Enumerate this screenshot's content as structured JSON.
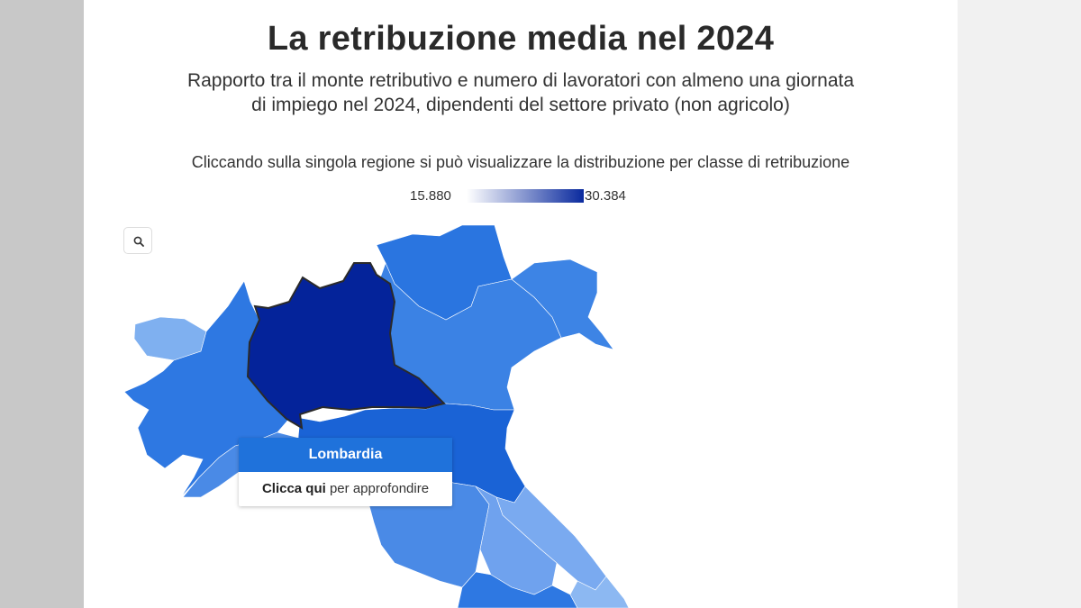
{
  "header": {
    "title": "La retribuzione media nel 2024",
    "subtitle_line1": "Rapporto tra il monte retributivo e numero di lavoratori con almeno una giornata",
    "subtitle_line2": "di impiego nel 2024, dipendenti del settore privato (non agricolo)",
    "instruction": "Cliccando sulla singola regione si può visualizzare la distribuzione per classe di retribuzione"
  },
  "legend": {
    "min": "15.880",
    "max": "30.384",
    "color_min": "#ffffff",
    "color_max": "#0a2a9e"
  },
  "map": {
    "search_icon": "search-icon",
    "regions": [
      {
        "name": "Valle d'Aosta",
        "color": "#7fb0f0"
      },
      {
        "name": "Piemonte",
        "color": "#2e78e2"
      },
      {
        "name": "Liguria",
        "color": "#4a8ae6"
      },
      {
        "name": "Lombardia",
        "color": "#04239a",
        "highlighted": true
      },
      {
        "name": "Trentino-Alto Adige",
        "color": "#2a75e0"
      },
      {
        "name": "Veneto",
        "color": "#3b82e4"
      },
      {
        "name": "Friuli-Venezia Giulia",
        "color": "#3d84e5"
      },
      {
        "name": "Emilia-Romagna",
        "color": "#1a63d6"
      },
      {
        "name": "Toscana",
        "color": "#4a8ae6"
      },
      {
        "name": "Marche",
        "color": "#7aaaf0"
      },
      {
        "name": "Umbria",
        "color": "#6fa2ee"
      },
      {
        "name": "Lazio",
        "color": "#2e78e2"
      }
    ]
  },
  "tooltip": {
    "region": "Lombardia",
    "link": "Clicca qui",
    "link_suffix": "per approfondire"
  }
}
